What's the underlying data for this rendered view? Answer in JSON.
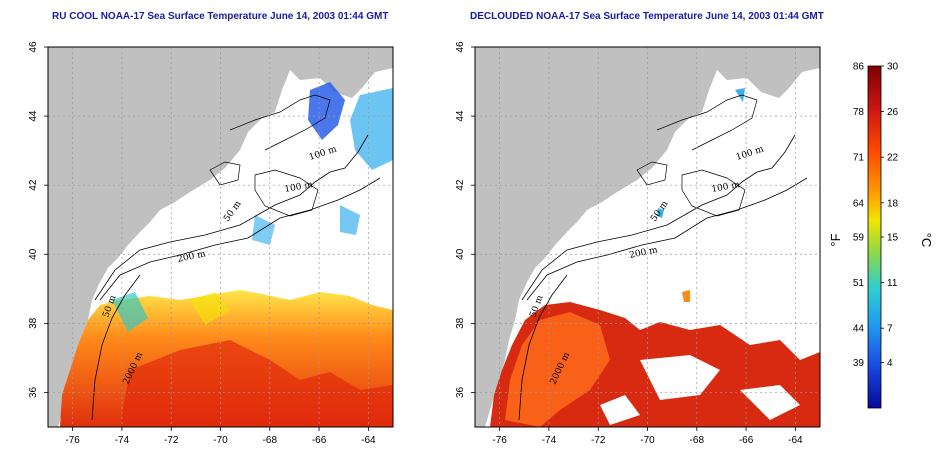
{
  "titles": {
    "left": "RU COOL NOAA-17 Sea Surface Temperature June 14, 2003 01:44 GMT",
    "right": "DECLOUDED NOAA-17 Sea Surface Temperature June 14, 2003 01:44 GMT"
  },
  "map": {
    "lon_range": [
      -77,
      -63
    ],
    "lat_range": [
      35,
      46
    ],
    "lon_ticks": [
      "-76",
      "-74",
      "-72",
      "-70",
      "-68",
      "-66",
      "-64"
    ],
    "lat_ticks": [
      "36",
      "38",
      "40",
      "42",
      "44",
      "46"
    ],
    "grid": "dotted",
    "land_color": "#c0c0c0",
    "contour_labels": [
      "100 m",
      "100 m",
      "50 m",
      "200 m",
      "50 m",
      "2000 m"
    ]
  },
  "colorbar": {
    "fahrenheit_ticks": [
      "86",
      "78",
      "71",
      "64",
      "59",
      "51",
      "44",
      "39"
    ],
    "celsius_ticks": [
      "30",
      "26",
      "22",
      "18",
      "15",
      "11",
      "7",
      "4"
    ],
    "fahrenheit_label": "°F",
    "celsius_label": "°C",
    "colors": [
      "#8b0000",
      "#d81e1e",
      "#ff6a00",
      "#ffb000",
      "#f2ea00",
      "#8fdc4a",
      "#33d6c8",
      "#26a6f0",
      "#1a5ee6",
      "#0a10a8"
    ]
  }
}
